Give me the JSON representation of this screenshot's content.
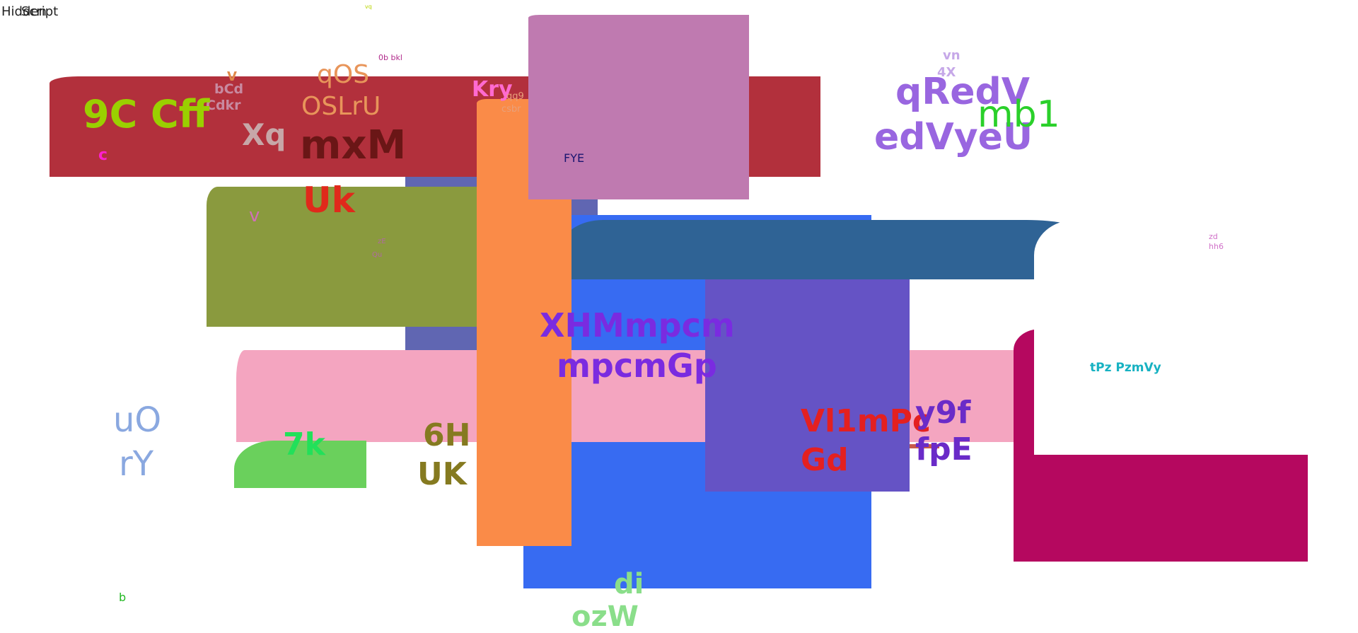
{
  "corner": {
    "text_a": "Hidden",
    "text_b": "Script"
  },
  "labels": {
    "tiny_yellow": "vq",
    "zero_b_bkl": "0b bkl",
    "v_small": "V",
    "bcd": "bCd",
    "cdkr": "Cdkr",
    "qos": "qOS",
    "oslru": "OSLrU",
    "nine_c_cff": "9C Cff",
    "c_magenta": "c",
    "xq": "Xq",
    "mxm": "mxM",
    "uk_red": "Uk",
    "v_pink": "v",
    "tiny_olive_a": "zE",
    "tiny_olive_b": "Qu",
    "kry": "Kry",
    "qq9": "qq9",
    "csbr": "csbr",
    "fye": "FYE",
    "vn": "vn",
    "four_x": "4X",
    "qredv": "qRedV",
    "edvyeu": "edVyeU",
    "mb1": "mb1",
    "zd": "zd",
    "hh6": "hh6",
    "xhm": "XHMmpcm",
    "mpcmgp": "mpcmGp",
    "tpz": "tPz PzmVy",
    "uo": "uO",
    "ry": "rY",
    "seven_k": "7k",
    "six_h": "6H",
    "uk_olive": "UK",
    "vl1mpc": "Vl1mPc",
    "gd": "Gd",
    "y9f": "y9f",
    "fpe": "fpE",
    "di": "di",
    "cut_bottom": "ozW",
    "b_green": "b"
  },
  "colors": {
    "red_bar": "#b2303c",
    "olive": "#8a9a3e",
    "slate_blue": "#6066b2",
    "orange": "#fa8b48",
    "mauve": "#bf7ab0",
    "blue": "#376bf2",
    "steel": "#2f6395",
    "violet": "#6553c5",
    "pink": "#f4a5c0",
    "magenta": "#b5085f",
    "green": "#6ad05c"
  }
}
